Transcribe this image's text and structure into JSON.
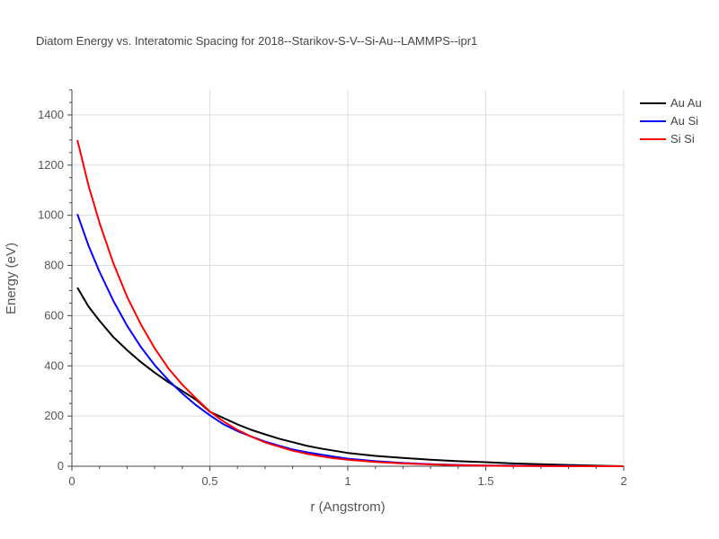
{
  "chart_data": {
    "type": "line",
    "title": "Diatom Energy vs. Interatomic Spacing for 2018--Starikov-S-V--Si-Au--LAMMPS--ipr1",
    "xlabel": "r (Angstrom)",
    "ylabel": "Energy (eV)",
    "xlim": [
      0,
      2
    ],
    "ylim": [
      0,
      1500
    ],
    "xticks": [
      "0",
      "0.5",
      "1",
      "1.5",
      "2"
    ],
    "yticks": [
      "0",
      "200",
      "400",
      "600",
      "800",
      "1000",
      "1200",
      "1400"
    ],
    "grid": true,
    "legend_position": "top-right",
    "series": [
      {
        "name": "Au Au",
        "color": "#000000",
        "x": [
          0.02,
          0.06,
          0.1,
          0.15,
          0.2,
          0.25,
          0.3,
          0.35,
          0.4,
          0.45,
          0.5,
          0.55,
          0.6,
          0.65,
          0.7,
          0.75,
          0.8,
          0.85,
          0.9,
          0.95,
          1.0,
          1.1,
          1.2,
          1.3,
          1.4,
          1.5,
          1.6,
          1.7,
          1.8,
          1.9,
          2.0
        ],
        "values": [
          712,
          637,
          580,
          515,
          463,
          415,
          373,
          335,
          300,
          265,
          217,
          192,
          167,
          145,
          127,
          110,
          96,
          82,
          71,
          62,
          53,
          41,
          33,
          26,
          20,
          16,
          11,
          8,
          5,
          2,
          0
        ]
      },
      {
        "name": "Au Si",
        "color": "#0000ff",
        "x": [
          0.02,
          0.06,
          0.1,
          0.15,
          0.2,
          0.25,
          0.3,
          0.35,
          0.4,
          0.45,
          0.5,
          0.55,
          0.6,
          0.65,
          0.7,
          0.75,
          0.8,
          0.85,
          0.9,
          0.95,
          1.0,
          1.1,
          1.2,
          1.3,
          1.4,
          1.5,
          1.6,
          1.7,
          1.8,
          1.9,
          2.0
        ],
        "values": [
          1005,
          880,
          775,
          660,
          560,
          475,
          403,
          343,
          290,
          243,
          203,
          167,
          140,
          118,
          98,
          82,
          67,
          56,
          47,
          38,
          30,
          20,
          13,
          8,
          5,
          3,
          2,
          1,
          1,
          0,
          0
        ]
      },
      {
        "name": "Si Si",
        "color": "#ff0000",
        "x": [
          0.02,
          0.06,
          0.1,
          0.15,
          0.2,
          0.25,
          0.3,
          0.35,
          0.4,
          0.45,
          0.5,
          0.55,
          0.6,
          0.65,
          0.7,
          0.75,
          0.8,
          0.85,
          0.9,
          0.95,
          1.0,
          1.1,
          1.2,
          1.3,
          1.4,
          1.5,
          1.6,
          1.7,
          1.8,
          1.9,
          2.0
        ],
        "values": [
          1300,
          1120,
          970,
          810,
          675,
          565,
          470,
          390,
          325,
          270,
          218,
          178,
          145,
          118,
          95,
          78,
          62,
          50,
          40,
          32,
          26,
          17,
          11,
          7,
          4,
          2,
          1,
          1,
          0,
          0,
          0
        ]
      }
    ]
  }
}
